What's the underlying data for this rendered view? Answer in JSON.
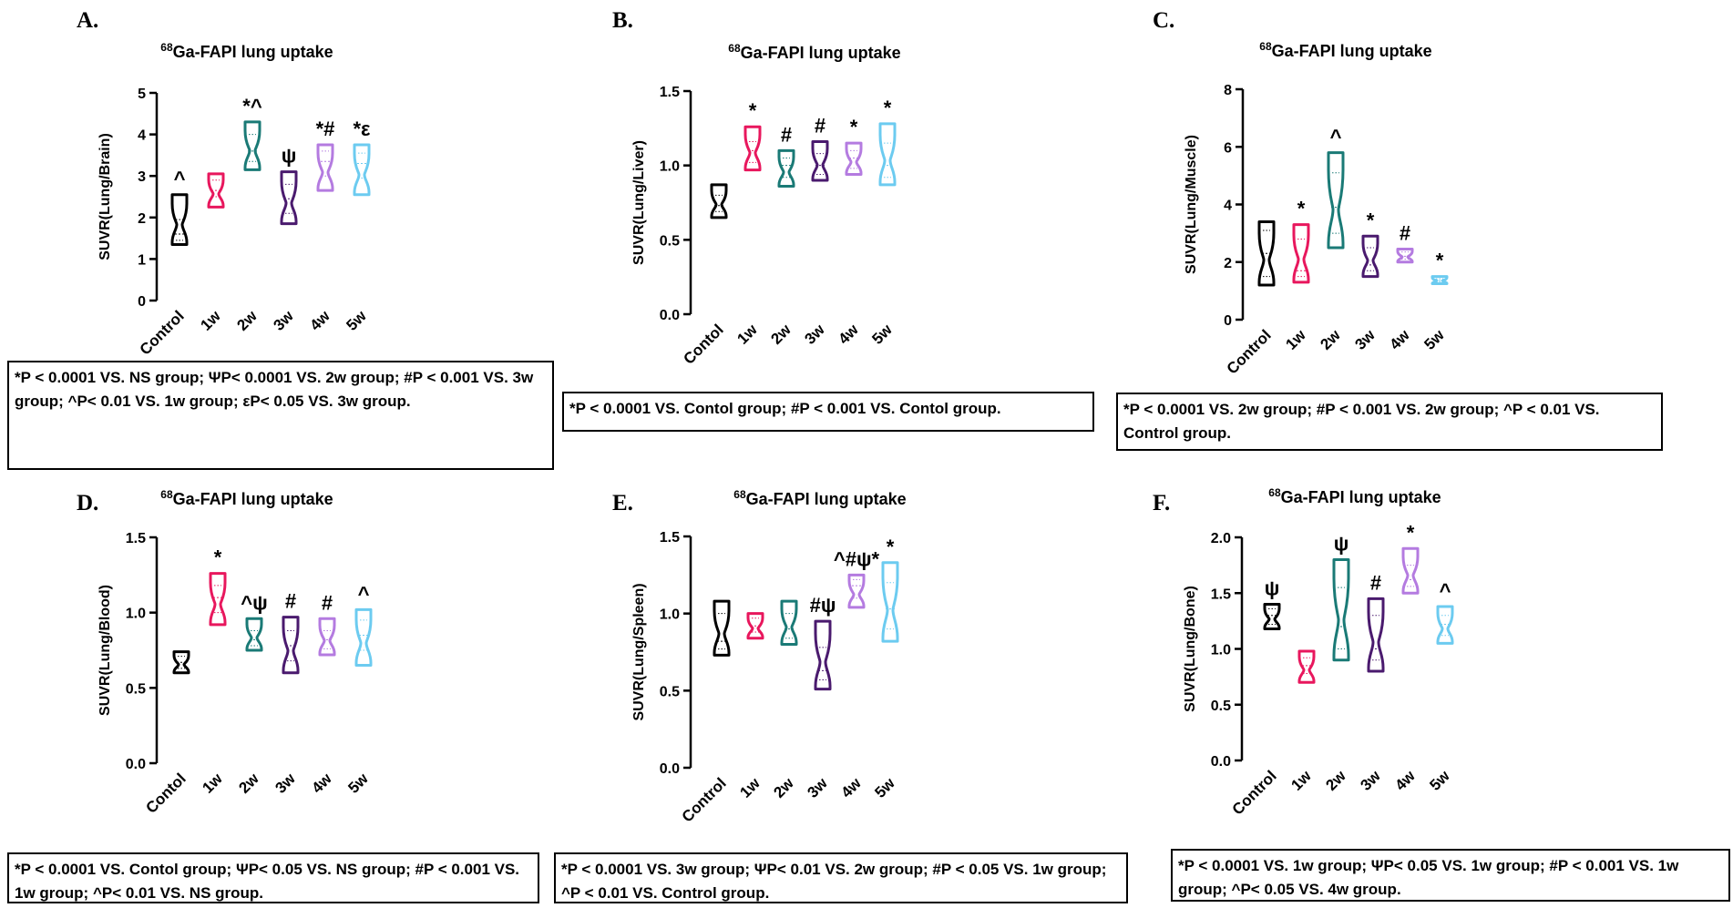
{
  "figure": {
    "panels": [
      {
        "label": "A.",
        "title_sup": "68",
        "title_main": "Ga-FAPI lung uptake",
        "ylabel": "SUVR(Lung/Brain)",
        "footnote": "*P < 0.0001 VS. NS group; ΨP< 0.0001 VS. 2w group; #P < 0.001 VS. 3w group; ^P< 0.01 VS. 1w group; εP< 0.05 VS. 3w group."
      },
      {
        "label": "B.",
        "title_sup": "68",
        "title_main": "Ga-FAPI lung uptake",
        "ylabel": "SUVR(Lung/Liver)",
        "footnote": "*P < 0.0001 VS. Contol group; #P < 0.001 VS. Contol group."
      },
      {
        "label": "C.",
        "title_sup": "68",
        "title_main": "Ga-FAPI lung uptake",
        "ylabel": "SUVR(Lung/Muscle)",
        "footnote": "*P < 0.0001 VS. 2w group; #P < 0.001 VS. 2w group; ^P < 0.01 VS. Control group."
      },
      {
        "label": "D.",
        "title_sup": "68",
        "title_main": "Ga-FAPI lung uptake",
        "ylabel": "SUVR(Lung/Blood)",
        "footnote": "*P < 0.0001 VS. Contol group; ΨP< 0.05 VS. NS group; #P < 0.001 VS. 1w group; ^P< 0.01 VS. NS group."
      },
      {
        "label": "E.",
        "title_sup": "68",
        "title_main": "Ga-FAPI lung uptake",
        "ylabel": "SUVR(Lung/Spleen)",
        "footnote": "*P < 0.0001 VS. 3w group; ΨP< 0.01 VS. 2w group; #P < 0.05 VS. 1w group; ^P < 0.01 VS. Control group."
      },
      {
        "label": "F.",
        "title_sup": "68",
        "title_main": "Ga-FAPI lung uptake",
        "ylabel": "SUVR(Lung/Bone)",
        "footnote": "*P < 0.0001 VS. 1w group; ΨP< 0.05 VS. 1w group; #P < 0.001 VS. 1w group; ^P< 0.05 VS. 4w group."
      }
    ]
  },
  "colors": [
    "#000000",
    "#e8175d",
    "#1a7a76",
    "#4a1a6e",
    "#b47be0",
    "#6ccbf0"
  ],
  "chart_data": [
    {
      "type": "violin",
      "title": "68Ga-FAPI lung uptake",
      "ylabel": "SUVR(Lung/Brain)",
      "ylim": [
        0,
        5
      ],
      "yticks": [
        "0",
        "1",
        "2",
        "3",
        "4",
        "5"
      ],
      "categories": [
        "Control",
        "1w",
        "2w",
        "3w",
        "4w",
        "5w"
      ],
      "series": [
        {
          "name": "Control",
          "min": 1.35,
          "max": 2.55,
          "median": 1.6,
          "q1": 1.45,
          "q3": 1.95,
          "annotation": "^"
        },
        {
          "name": "1w",
          "min": 2.25,
          "max": 3.05,
          "median": 2.65,
          "q1": 2.5,
          "q3": 2.9,
          "annotation": ""
        },
        {
          "name": "2w",
          "min": 3.15,
          "max": 4.3,
          "median": 3.6,
          "q1": 3.35,
          "q3": 4.0,
          "annotation": "*^"
        },
        {
          "name": "3w",
          "min": 1.85,
          "max": 3.1,
          "median": 2.45,
          "q1": 2.1,
          "q3": 2.8,
          "annotation": "ψ"
        },
        {
          "name": "4w",
          "min": 2.65,
          "max": 3.75,
          "median": 3.35,
          "q1": 3.0,
          "q3": 3.6,
          "annotation": "*#"
        },
        {
          "name": "5w",
          "min": 2.55,
          "max": 3.75,
          "median": 3.3,
          "q1": 2.95,
          "q3": 3.55,
          "annotation": "*ε"
        }
      ]
    },
    {
      "type": "violin",
      "title": "68Ga-FAPI lung uptake",
      "ylabel": "SUVR(Lung/Liver)",
      "ylim": [
        0,
        1.5
      ],
      "yticks": [
        "0.0",
        "0.5",
        "1.0",
        "1.5"
      ],
      "categories": [
        "Contol",
        "1w",
        "2w",
        "3w",
        "4w",
        "5w"
      ],
      "series": [
        {
          "name": "Contol",
          "min": 0.65,
          "max": 0.87,
          "median": 0.73,
          "q1": 0.69,
          "q3": 0.8,
          "annotation": ""
        },
        {
          "name": "1w",
          "min": 0.97,
          "max": 1.26,
          "median": 1.1,
          "q1": 1.02,
          "q3": 1.16,
          "annotation": "*"
        },
        {
          "name": "2w",
          "min": 0.86,
          "max": 1.1,
          "median": 1.0,
          "q1": 0.92,
          "q3": 1.05,
          "annotation": "#"
        },
        {
          "name": "3w",
          "min": 0.9,
          "max": 1.16,
          "median": 1.0,
          "q1": 0.94,
          "q3": 1.08,
          "annotation": "#"
        },
        {
          "name": "4w",
          "min": 0.94,
          "max": 1.15,
          "median": 1.05,
          "q1": 0.98,
          "q3": 1.1,
          "annotation": "*"
        },
        {
          "name": "5w",
          "min": 0.87,
          "max": 1.28,
          "median": 1.0,
          "q1": 0.92,
          "q3": 1.15,
          "annotation": "*"
        }
      ]
    },
    {
      "type": "violin",
      "title": "68Ga-FAPI lung uptake",
      "ylabel": "SUVR(Lung/Muscle)",
      "ylim": [
        0,
        8
      ],
      "yticks": [
        "0",
        "2",
        "4",
        "6",
        "8"
      ],
      "categories": [
        "Control",
        "1w",
        "2w",
        "3w",
        "4w",
        "5w"
      ],
      "series": [
        {
          "name": "Control",
          "min": 1.2,
          "max": 3.4,
          "median": 2.3,
          "q1": 1.5,
          "q3": 3.1,
          "annotation": ""
        },
        {
          "name": "1w",
          "min": 1.3,
          "max": 3.3,
          "median": 1.7,
          "q1": 1.5,
          "q3": 2.8,
          "annotation": "*"
        },
        {
          "name": "2w",
          "min": 2.5,
          "max": 5.8,
          "median": 3.9,
          "q1": 3.0,
          "q3": 5.1,
          "annotation": "^"
        },
        {
          "name": "3w",
          "min": 1.5,
          "max": 2.9,
          "median": 1.9,
          "q1": 1.7,
          "q3": 2.5,
          "annotation": "*"
        },
        {
          "name": "4w",
          "min": 2.0,
          "max": 2.45,
          "median": 2.2,
          "q1": 2.1,
          "q3": 2.35,
          "annotation": "#"
        },
        {
          "name": "5w",
          "min": 1.25,
          "max": 1.5,
          "median": 1.35,
          "q1": 1.3,
          "q3": 1.42,
          "annotation": "*"
        }
      ]
    },
    {
      "type": "violin",
      "title": "68Ga-FAPI lung uptake",
      "ylabel": "SUVR(Lung/Blood)",
      "ylim": [
        0,
        1.5
      ],
      "yticks": [
        "0.0",
        "0.5",
        "1.0",
        "1.5"
      ],
      "categories": [
        "Contol",
        "1w",
        "2w",
        "3w",
        "4w",
        "5w"
      ],
      "series": [
        {
          "name": "Contol",
          "min": 0.6,
          "max": 0.74,
          "median": 0.67,
          "q1": 0.63,
          "q3": 0.71,
          "annotation": ""
        },
        {
          "name": "1w",
          "min": 0.92,
          "max": 1.26,
          "median": 1.1,
          "q1": 1.0,
          "q3": 1.18,
          "annotation": "*"
        },
        {
          "name": "2w",
          "min": 0.75,
          "max": 0.96,
          "median": 0.82,
          "q1": 0.78,
          "q3": 0.88,
          "annotation": "^ψ"
        },
        {
          "name": "3w",
          "min": 0.6,
          "max": 0.97,
          "median": 0.78,
          "q1": 0.68,
          "q3": 0.88,
          "annotation": "#"
        },
        {
          "name": "4w",
          "min": 0.72,
          "max": 0.96,
          "median": 0.82,
          "q1": 0.76,
          "q3": 0.88,
          "annotation": "#"
        },
        {
          "name": "5w",
          "min": 0.65,
          "max": 1.02,
          "median": 0.85,
          "q1": 0.75,
          "q3": 0.95,
          "annotation": "^"
        }
      ]
    },
    {
      "type": "violin",
      "title": "68Ga-FAPI lung uptake",
      "ylabel": "SUVR(Lung/Spleen)",
      "ylim": [
        0,
        1.5
      ],
      "yticks": [
        "0.0",
        "0.5",
        "1.0",
        "1.5"
      ],
      "categories": [
        "Control",
        "1w",
        "2w",
        "3w",
        "4w",
        "5w"
      ],
      "series": [
        {
          "name": "Control",
          "min": 0.73,
          "max": 1.08,
          "median": 0.82,
          "q1": 0.77,
          "q3": 1.0,
          "annotation": ""
        },
        {
          "name": "1w",
          "min": 0.84,
          "max": 1.0,
          "median": 0.92,
          "q1": 0.88,
          "q3": 0.97,
          "annotation": ""
        },
        {
          "name": "2w",
          "min": 0.8,
          "max": 1.08,
          "median": 0.9,
          "q1": 0.84,
          "q3": 1.0,
          "annotation": ""
        },
        {
          "name": "3w",
          "min": 0.51,
          "max": 0.95,
          "median": 0.63,
          "q1": 0.57,
          "q3": 0.78,
          "annotation": "#ψ"
        },
        {
          "name": "4w",
          "min": 1.04,
          "max": 1.25,
          "median": 1.18,
          "q1": 1.1,
          "q3": 1.22,
          "annotation": "^#ψ*"
        },
        {
          "name": "5w",
          "min": 0.82,
          "max": 1.33,
          "median": 1.03,
          "q1": 0.9,
          "q3": 1.2,
          "annotation": "*"
        }
      ]
    },
    {
      "type": "violin",
      "title": "68Ga-FAPI lung uptake",
      "ylabel": "SUVR(Lung/Bone)",
      "ylim": [
        0,
        2
      ],
      "yticks": [
        "0.0",
        "0.5",
        "1.0",
        "1.5",
        "2.0"
      ],
      "categories": [
        "Control",
        "1w",
        "2w",
        "3w",
        "4w",
        "5w"
      ],
      "series": [
        {
          "name": "Control",
          "min": 1.18,
          "max": 1.4,
          "median": 1.3,
          "q1": 1.22,
          "q3": 1.36,
          "annotation": "ψ"
        },
        {
          "name": "1w",
          "min": 0.7,
          "max": 0.98,
          "median": 0.85,
          "q1": 0.78,
          "q3": 0.92,
          "annotation": ""
        },
        {
          "name": "2w",
          "min": 0.9,
          "max": 1.8,
          "median": 1.2,
          "q1": 1.0,
          "q3": 1.55,
          "annotation": "ψ"
        },
        {
          "name": "3w",
          "min": 0.8,
          "max": 1.45,
          "median": 1.0,
          "q1": 0.9,
          "q3": 1.3,
          "annotation": "#"
        },
        {
          "name": "4w",
          "min": 1.5,
          "max": 1.9,
          "median": 1.62,
          "q1": 1.56,
          "q3": 1.75,
          "annotation": "*"
        },
        {
          "name": "5w",
          "min": 1.05,
          "max": 1.38,
          "median": 1.22,
          "q1": 1.12,
          "q3": 1.3,
          "annotation": "^"
        }
      ]
    }
  ]
}
